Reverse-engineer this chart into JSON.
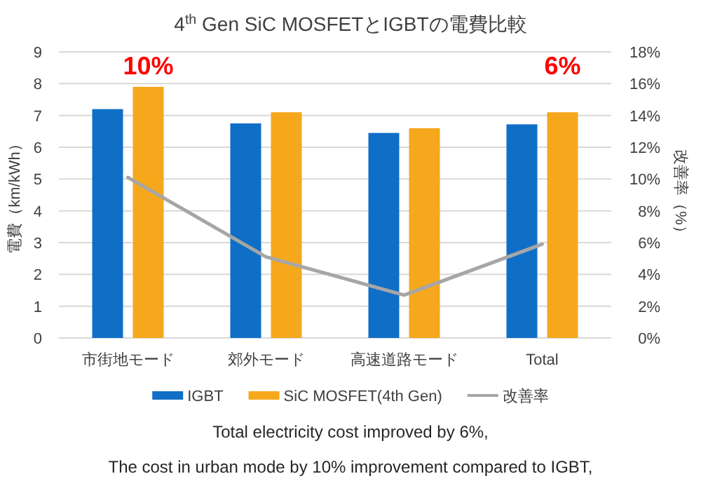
{
  "chart_data": {
    "type": "bar",
    "title": "4$^{th}$ Gen SiC MOSFETとIGBTの電費比較",
    "ylabel": "電費（km/kWh）",
    "y2label": "改善率（%）",
    "categories": [
      "市街地モード",
      "郊外モード",
      "高速道路モード",
      "Total"
    ],
    "series": [
      {
        "name": "IGBT",
        "color": "#0f6fc6",
        "values": [
          7.2,
          6.75,
          6.45,
          6.72
        ]
      },
      {
        "name": "SiC MOSFET(4th Gen)",
        "color": "#f5a81c",
        "values": [
          7.9,
          7.1,
          6.6,
          7.1
        ]
      },
      {
        "name": "改善率",
        "type": "line",
        "axis": "y2",
        "color": "#a6a6a6",
        "values": [
          10.1,
          5.1,
          2.7,
          5.9
        ]
      }
    ],
    "ylim": [
      0,
      9
    ],
    "yticks": [
      0,
      1,
      2,
      3,
      4,
      5,
      6,
      7,
      8,
      9
    ],
    "y2lim": [
      0,
      18
    ],
    "y2ticks": [
      {
        "value": 0,
        "label": "0%"
      },
      {
        "value": 2,
        "label": "2%"
      },
      {
        "value": 4,
        "label": "4%"
      },
      {
        "value": 6,
        "label": "6%"
      },
      {
        "value": 8,
        "label": "8%"
      },
      {
        "value": 10,
        "label": "10%"
      },
      {
        "value": 12,
        "label": "12%"
      },
      {
        "value": 14,
        "label": "14%"
      },
      {
        "value": 16,
        "label": "16%"
      },
      {
        "value": 18,
        "label": "18%"
      }
    ],
    "grid": "y",
    "legend": "bottom",
    "marker": "none",
    "annotations": [
      "10%",
      "6%",
      "Total electricity cost improved by 6%,",
      "The cost in urban mode by 10% improvement compared to IGBT,"
    ]
  }
}
